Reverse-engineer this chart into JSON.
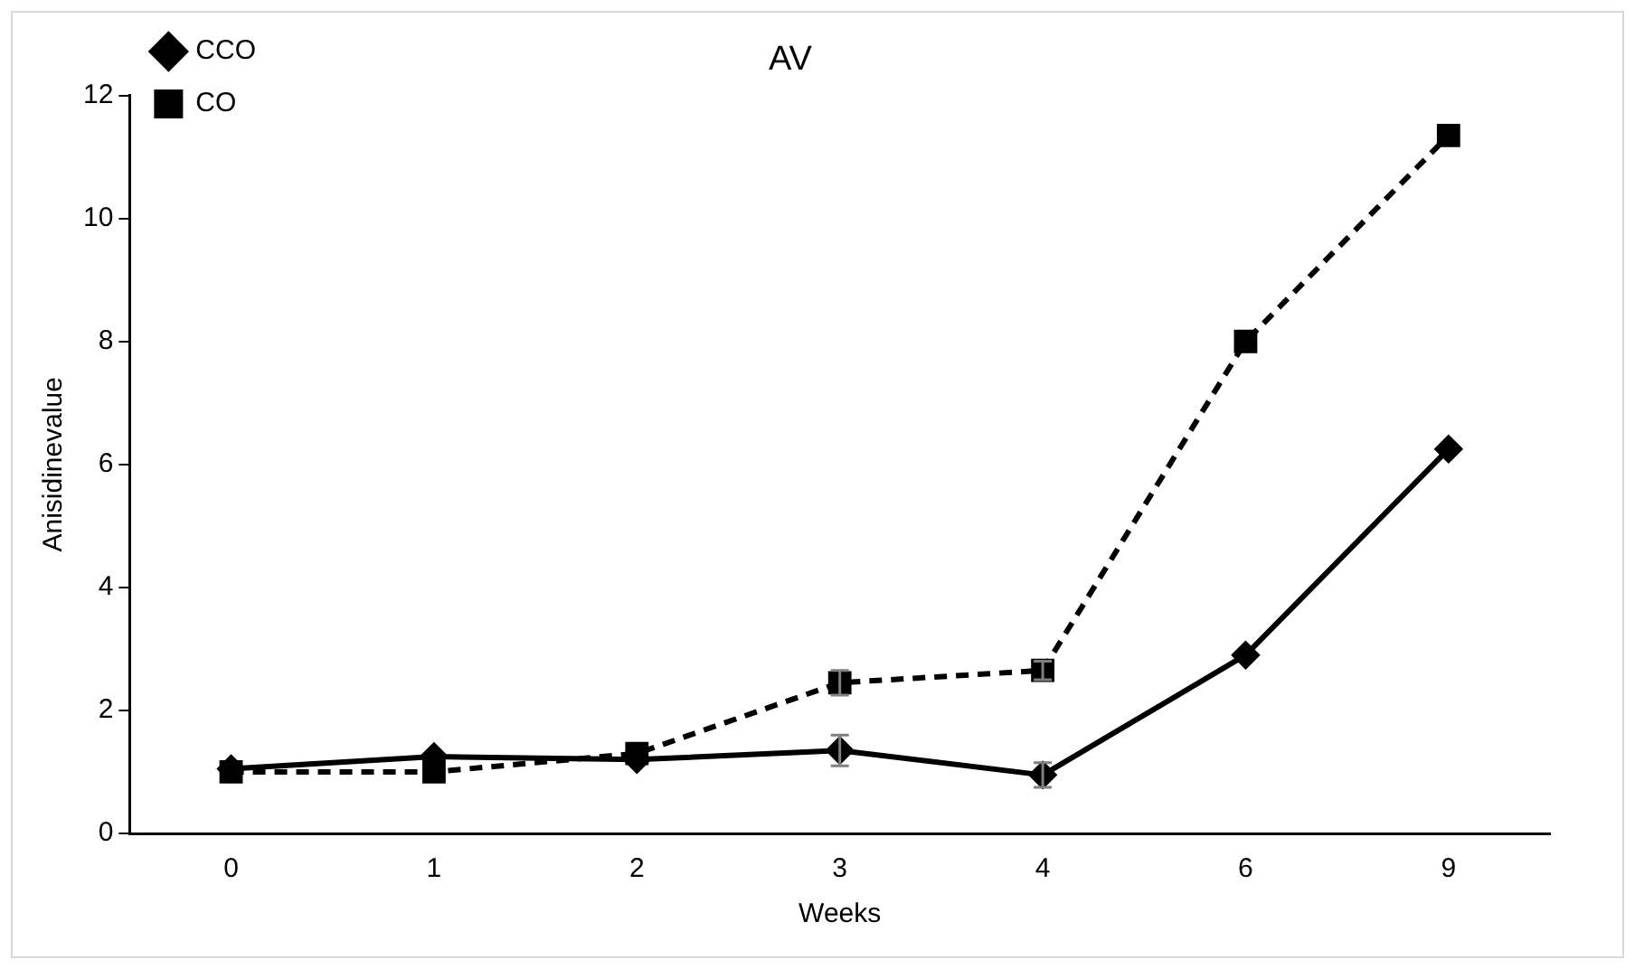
{
  "chart_data": {
    "type": "line",
    "title": "AV",
    "xlabel": "Weeks",
    "ylabel": "Anisidinevalue",
    "categories": [
      "0",
      "1",
      "2",
      "3",
      "4",
      "6",
      "9"
    ],
    "series": [
      {
        "name": "CCO",
        "color": "#000000",
        "marker": "diamond",
        "line_style": "solid",
        "values": [
          1.05,
          1.25,
          1.2,
          1.35,
          0.95,
          2.9,
          6.25
        ],
        "errors": [
          null,
          null,
          null,
          0.25,
          0.2,
          null,
          null
        ]
      },
      {
        "name": "CO",
        "color": "#000000",
        "marker": "square",
        "line_style": "dashed",
        "values": [
          1.0,
          1.0,
          1.3,
          2.45,
          2.65,
          8.0,
          11.35
        ],
        "errors": [
          null,
          null,
          null,
          0.2,
          0.15,
          null,
          null
        ]
      }
    ],
    "ylim": [
      0,
      12
    ],
    "yticks": [
      0,
      2,
      4,
      6,
      8,
      10,
      12
    ],
    "grid": false,
    "legend": "top left"
  }
}
